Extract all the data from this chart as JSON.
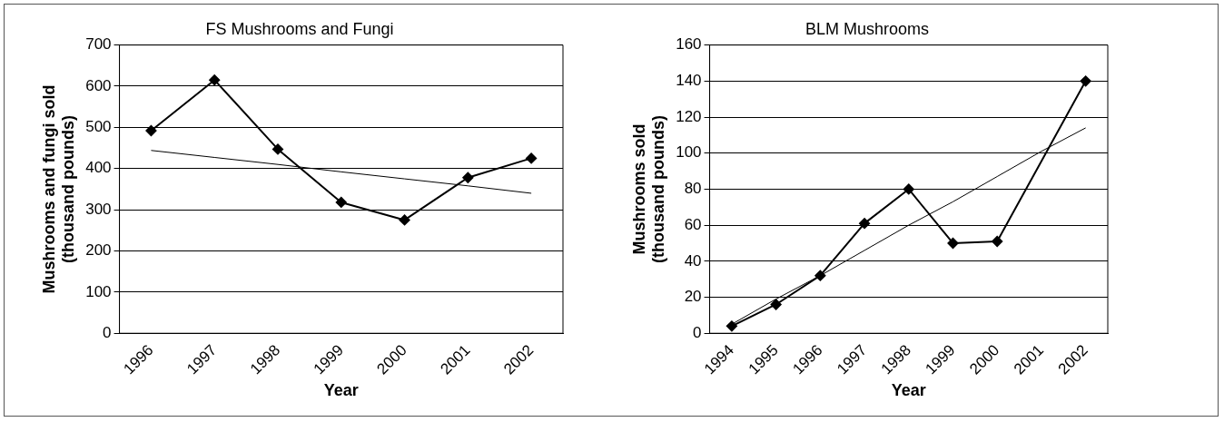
{
  "chart_data": [
    {
      "type": "line",
      "title": "FS Mushrooms and Fungi",
      "xlabel": "Year",
      "ylabel": "Mushrooms and fungi sold\n(thousand pounds)",
      "categories": [
        "1996",
        "1997",
        "1998",
        "1999",
        "2000",
        "2001",
        "2002"
      ],
      "series": [
        {
          "color": "#000000",
          "marker": "diamond",
          "values": [
            492,
            615,
            447,
            318,
            275,
            378,
            425
          ]
        },
        {
          "type": "line",
          "color": "#000000",
          "marker": "none",
          "values": [
            444,
            427,
            410,
            392,
            375,
            358,
            340
          ]
        }
      ],
      "ylim": [
        0,
        700
      ],
      "yticks": [
        0,
        100,
        200,
        300,
        400,
        500,
        600,
        700
      ],
      "grid": "y",
      "legend": false
    },
    {
      "type": "line",
      "title": "BLM Mushrooms",
      "xlabel": "Year",
      "ylabel": "Mushrooms sold\n(thousand pounds)",
      "categories": [
        "1994",
        "1995",
        "1996",
        "1997",
        "1998",
        "1999",
        "2000",
        "2001",
        "2002"
      ],
      "series": [
        {
          "color": "#000000",
          "marker": "diamond",
          "values": [
            4,
            16,
            32,
            61,
            80,
            50,
            51,
            null,
            140
          ]
        },
        {
          "type": "line",
          "color": "#000000",
          "marker": "none",
          "values": [
            5,
            19,
            32,
            46,
            60,
            73,
            87,
            101,
            114
          ]
        }
      ],
      "ylim": [
        0,
        160
      ],
      "yticks": [
        0,
        20,
        40,
        60,
        80,
        100,
        120,
        140,
        160
      ],
      "grid": "y",
      "legend": false
    }
  ]
}
